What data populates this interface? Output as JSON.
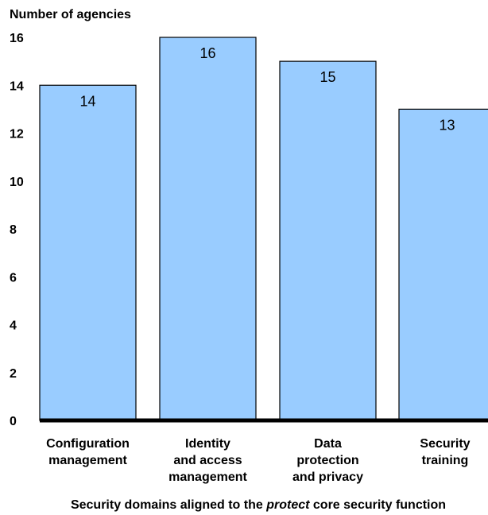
{
  "chart_data": {
    "type": "bar",
    "ylabel": "Number of agencies",
    "xlabel": {
      "before": "Security domains aligned to the ",
      "emphasis": "protect",
      "after": " core security function"
    },
    "categories": [
      [
        "Configuration",
        "management"
      ],
      [
        "Identity",
        "and access",
        "management"
      ],
      [
        "Data",
        "protection",
        "and privacy"
      ],
      [
        "Security",
        "training"
      ]
    ],
    "values": [
      14,
      16,
      15,
      13
    ],
    "ylim": [
      0,
      16
    ],
    "yticks": [
      0,
      2,
      4,
      6,
      8,
      10,
      12,
      14,
      16
    ],
    "bar_color": "#99ccff",
    "bar_edge_color": "#000000",
    "axis_color": "#000000",
    "grid": false,
    "data_labels": true
  }
}
